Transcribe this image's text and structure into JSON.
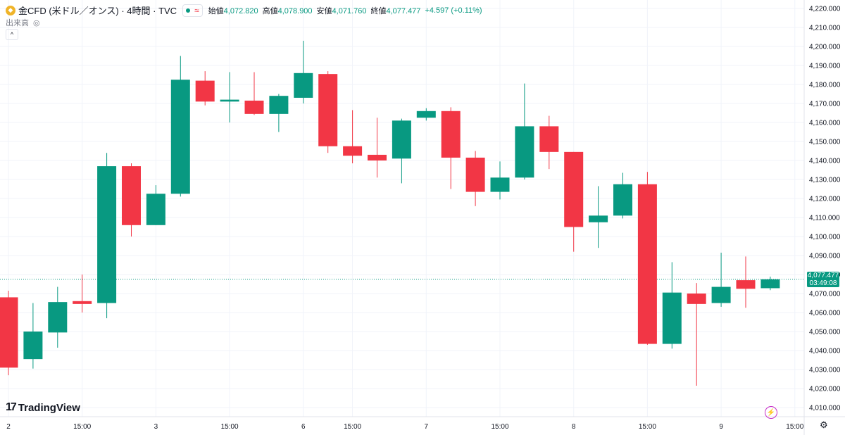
{
  "legend": {
    "symbol_icon": "gold-coin-icon",
    "title": "金CFD (米ドル／オンス) · 4時間 · TVC",
    "market_icon": "market-open-dot-icon",
    "wave_icon": "approx-icon",
    "wave_glyph": "≈",
    "open_label": "始値",
    "open_value": "4,072.820",
    "high_label": "高値",
    "high_value": "4,078.900",
    "low_label": "安値",
    "low_value": "4,071.760",
    "close_label": "終値",
    "close_value": "4,077.477",
    "change": "+4.597 (+0.11%)"
  },
  "volume": {
    "label": "出来高",
    "icon": "eye-hidden-icon",
    "icon_glyph": "◎"
  },
  "collapse_glyph": "^",
  "brand": {
    "logo_icon": "tradingview-logo-icon",
    "logo_glyph": "17",
    "name": "TradingView"
  },
  "price_tag": {
    "price": "4,077.477",
    "countdown": "03:49:08"
  },
  "icons": {
    "bolt": "lightning-icon",
    "bolt_glyph": "⚡",
    "settings": "gear-icon",
    "settings_glyph": "⚙"
  },
  "colors": {
    "up": "#089981",
    "down": "#f23645",
    "grid": "#f0f3fa",
    "current_line": "#089981"
  },
  "chart_data": {
    "type": "candlestick",
    "y_ticks": [
      "4,220.000",
      "4,210.000",
      "4,200.000",
      "4,190.000",
      "4,180.000",
      "4,170.000",
      "4,160.000",
      "4,150.000",
      "4,140.000",
      "4,130.000",
      "4,120.000",
      "4,110.000",
      "4,100.000",
      "4,090.000",
      "4,080.000",
      "4,070.000",
      "4,060.000",
      "4,050.000",
      "4,040.000",
      "4,030.000",
      "4,020.000",
      "4,010.000"
    ],
    "ylim": [
      4005,
      4225
    ],
    "x_labels": [
      {
        "label": "2",
        "index": 0
      },
      {
        "label": "15:00",
        "index": 3
      },
      {
        "label": "3",
        "index": 6
      },
      {
        "label": "15:00",
        "index": 9
      },
      {
        "label": "6",
        "index": 12
      },
      {
        "label": "15:00",
        "index": 14
      },
      {
        "label": "7",
        "index": 17
      },
      {
        "label": "15:00",
        "index": 20
      },
      {
        "label": "8",
        "index": 23
      },
      {
        "label": "15:00",
        "index": 26
      },
      {
        "label": "9",
        "index": 29
      },
      {
        "label": "15:00",
        "index": 32
      }
    ],
    "current_price": 4077.477,
    "candles": [
      {
        "o": 4068.0,
        "h": 4071.5,
        "l": 4027.0,
        "c": 4031.0
      },
      {
        "o": 4035.5,
        "h": 4065.0,
        "l": 4030.5,
        "c": 4050.0
      },
      {
        "o": 4049.5,
        "h": 4073.5,
        "l": 4041.5,
        "c": 4065.5
      },
      {
        "o": 4066.0,
        "h": 4080.0,
        "l": 4060.0,
        "c": 4064.5
      },
      {
        "o": 4065.0,
        "h": 4144.0,
        "l": 4057.0,
        "c": 4137.0
      },
      {
        "o": 4137.0,
        "h": 4138.5,
        "l": 4100.0,
        "c": 4106.0
      },
      {
        "o": 4106.0,
        "h": 4127.0,
        "l": 4106.0,
        "c": 4122.5
      },
      {
        "o": 4122.5,
        "h": 4195.0,
        "l": 4121.0,
        "c": 4182.5
      },
      {
        "o": 4182.0,
        "h": 4187.0,
        "l": 4169.0,
        "c": 4171.0
      },
      {
        "o": 4171.0,
        "h": 4186.5,
        "l": 4160.0,
        "c": 4172.0
      },
      {
        "o": 4171.5,
        "h": 4186.5,
        "l": 4164.0,
        "c": 4164.5
      },
      {
        "o": 4164.5,
        "h": 4175.0,
        "l": 4155.0,
        "c": 4174.0
      },
      {
        "o": 4173.0,
        "h": 4203.0,
        "l": 4170.0,
        "c": 4186.0
      },
      {
        "o": 4185.5,
        "h": 4187.0,
        "l": 4144.0,
        "c": 4147.5
      },
      {
        "o": 4147.5,
        "h": 4166.5,
        "l": 4138.5,
        "c": 4142.5
      },
      {
        "o": 4143.0,
        "h": 4162.5,
        "l": 4131.0,
        "c": 4140.0
      },
      {
        "o": 4141.0,
        "h": 4162.0,
        "l": 4128.0,
        "c": 4161.0
      },
      {
        "o": 4162.5,
        "h": 4167.5,
        "l": 4161.0,
        "c": 4166.0
      },
      {
        "o": 4166.0,
        "h": 4168.0,
        "l": 4125.0,
        "c": 4141.5
      },
      {
        "o": 4141.5,
        "h": 4145.0,
        "l": 4116.0,
        "c": 4123.5
      },
      {
        "o": 4123.5,
        "h": 4139.5,
        "l": 4119.5,
        "c": 4131.0
      },
      {
        "o": 4131.0,
        "h": 4180.5,
        "l": 4130.0,
        "c": 4158.0
      },
      {
        "o": 4158.0,
        "h": 4163.5,
        "l": 4135.5,
        "c": 4144.5
      },
      {
        "o": 4144.5,
        "h": 4144.5,
        "l": 4092.0,
        "c": 4105.0
      },
      {
        "o": 4107.5,
        "h": 4126.5,
        "l": 4094.0,
        "c": 4111.0
      },
      {
        "o": 4111.0,
        "h": 4133.5,
        "l": 4109.5,
        "c": 4127.5
      },
      {
        "o": 4127.5,
        "h": 4134.0,
        "l": 4043.0,
        "c": 4043.5
      },
      {
        "o": 4043.5,
        "h": 4086.5,
        "l": 4041.0,
        "c": 4070.5
      },
      {
        "o": 4070.0,
        "h": 4075.5,
        "l": 4021.5,
        "c": 4064.5
      },
      {
        "o": 4065.0,
        "h": 4091.5,
        "l": 4063.0,
        "c": 4073.5
      },
      {
        "o": 4077.0,
        "h": 4089.5,
        "l": 4062.5,
        "c": 4072.5
      },
      {
        "o": 4072.8,
        "h": 4078.9,
        "l": 4071.76,
        "c": 4077.477
      }
    ]
  }
}
